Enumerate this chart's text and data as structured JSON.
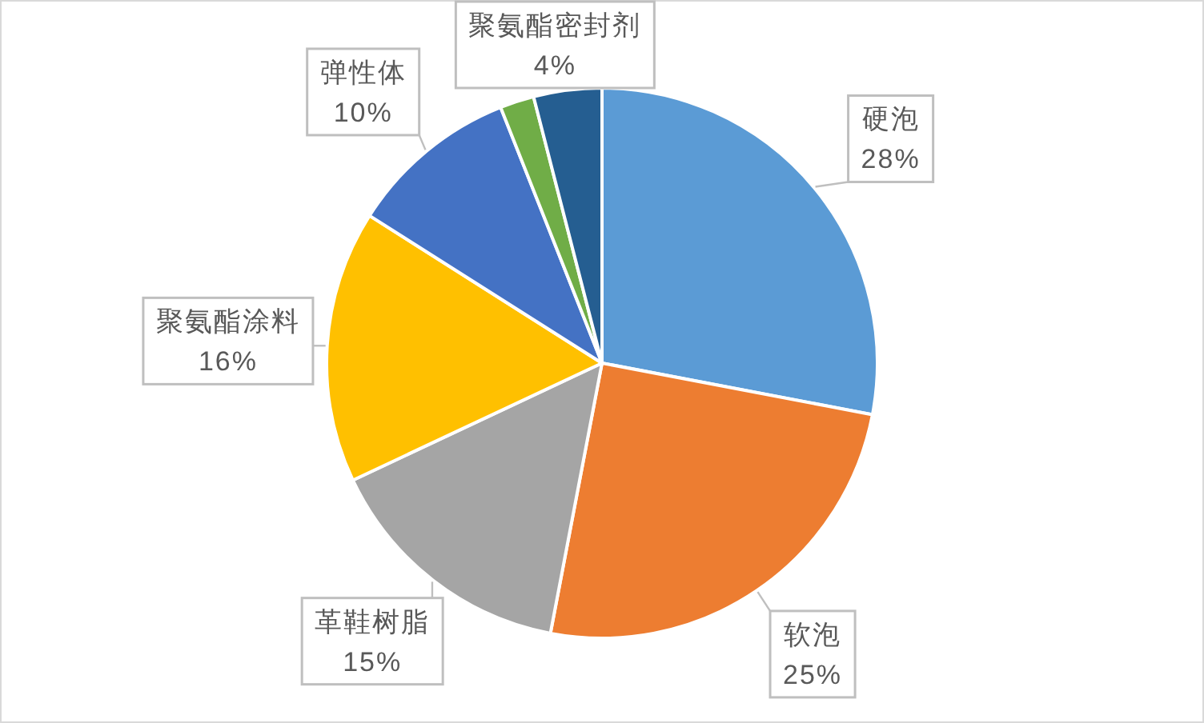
{
  "chart_data": {
    "type": "pie",
    "categories": [
      "硬泡",
      "软泡",
      "革鞋树脂",
      "聚氨酯涂料",
      "弹性体",
      null,
      "聚氨酯密封剂"
    ],
    "values": [
      28,
      25,
      15,
      16,
      10,
      2,
      4
    ],
    "value_labels": [
      "28%",
      "25%",
      "15%",
      "16%",
      "10%",
      null,
      "4%"
    ],
    "colors": [
      "#5b9bd5",
      "#ed7d31",
      "#a5a5a5",
      "#ffc000",
      "#4472c4",
      "#70ad47",
      "#255e91"
    ]
  }
}
